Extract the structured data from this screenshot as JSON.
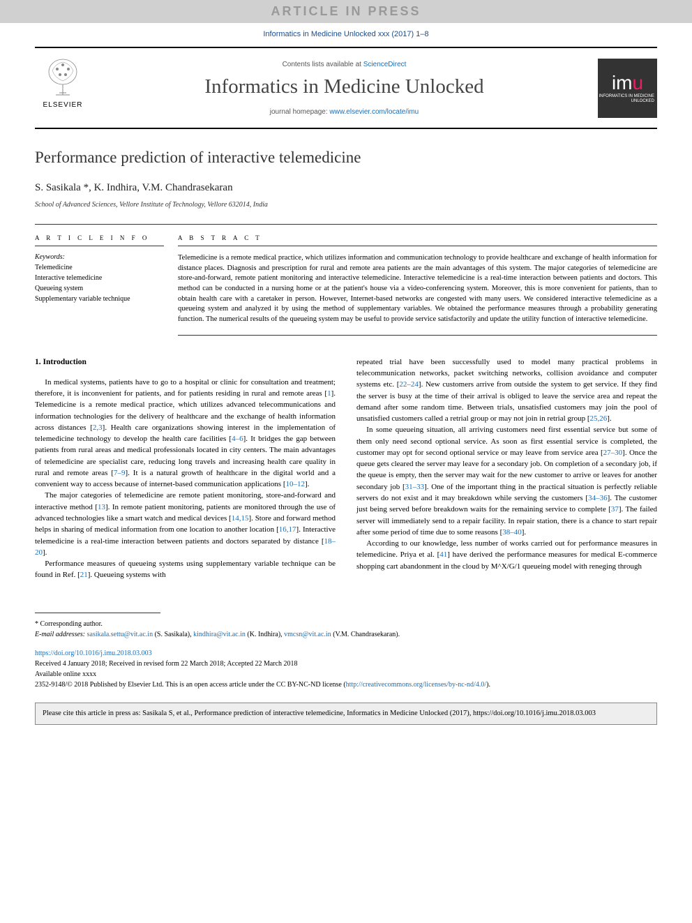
{
  "press_banner": "ARTICLE IN PRESS",
  "journal_ref": "Informatics in Medicine Unlocked xxx (2017) 1–8",
  "contents_text": "Contents lists available at ",
  "contents_link": "ScienceDirect",
  "journal_title": "Informatics in Medicine Unlocked",
  "homepage_label": "journal homepage: ",
  "homepage_url": "www.elsevier.com/locate/imu",
  "elsevier_label": "ELSEVIER",
  "imu_label_top": "imu",
  "imu_label_bottom": "INFORMATICS IN MEDICINE UNLOCKED",
  "article_title": "Performance prediction of interactive telemedicine",
  "authors": "S. Sasikala *, K. Indhira, V.M. Chandrasekaran",
  "affiliation": "School of Advanced Sciences, Vellore Institute of Technology, Vellore 632014, India",
  "article_info_head": "A R T I C L E  I N F O",
  "abstract_head": "A B S T R A C T",
  "keywords_label": "Keywords:",
  "keywords": [
    "Telemedicine",
    "Interactive telemedicine",
    "Queueing system",
    "Supplementary variable technique"
  ],
  "abstract": "Telemedicine is a remote medical practice, which utilizes information and communication technology to provide healthcare and exchange of health information for distance places. Diagnosis and prescription for rural and remote area patients are the main advantages of this system. The major categories of telemedicine are store-and-forward, remote patient monitoring and interactive telemedicine. Interactive telemedicine is a real-time interaction between patients and doctors. This method can be conducted in a nursing home or at the patient's house via a video-conferencing system. Moreover, this is more convenient for patients, than to obtain health care with a caretaker in person. However, Internet-based networks are congested with many users. We considered interactive telemedicine as a queueing system and analyzed it by using the method of supplementary variables. We obtained the performance measures through a probability generating function. The numerical results of the queueing system may be useful to provide service satisfactorily and update the utility function of interactive telemedicine.",
  "section1_head": "1.  Introduction",
  "p1": "In medical systems, patients have to go to a hospital or clinic for consultation and treatment; therefore, it is inconvenient for patients, and for patients residing in rural and remote areas [1]. Telemedicine is a remote medical practice, which utilizes advanced telecommunications and information technologies for the delivery of healthcare and the exchange of health information across distances [2,3]. Health care organizations showing interest in the implementation of telemedicine technology to develop the health care facilities [4–6]. It bridges the gap between patients from rural areas and medical professionals located in city centers. The main advantages of telemedicine are specialist care, reducing long travels and increasing health care quality in rural and remote areas [7–9]. It is a natural growth of healthcare in the digital world and a convenient way to access because of internet-based communication applications [10–12].",
  "p2": "The major categories of telemedicine are remote patient monitoring, store-and-forward and interactive method [13]. In remote patient monitoring, patients are monitored through the use of advanced technologies like a smart watch and medical devices [14,15]. Store and forward method helps in sharing of medical information from one location to another location [16,17]. Interactive telemedicine is a real-time interaction between patients and doctors separated by distance [18–20].",
  "p3": "Performance measures of queueing systems using supplementary variable technique can be found in Ref. [21]. Queueing systems with",
  "p4": "repeated trial have been successfully used to model many practical problems in telecommunication networks, packet switching networks, collision avoidance and computer systems etc. [22–24]. New customers arrive from outside the system to get service. If they find the server is busy at the time of their arrival is obliged to leave the service area and repeat the demand after some random time. Between trials, unsatisfied customers may join the pool of unsatisfied customers called a retrial group or may not join in retrial group [25,26].",
  "p5": "In some queueing situation, all arriving customers need first essential service but some of them only need second optional service. As soon as first essential service is completed, the customer may opt for second optional service or may leave from service area [27–30]. Once the queue gets cleared the server may leave for a secondary job. On completion of a secondary job, if the queue is empty, then the server may wait for the new customer to arrive or leaves for another secondary job [31–33]. One of the important thing in the practical situation is perfectly reliable servers do not exist and it may breakdown while serving the customers [34–36]. The customer just being served before breakdown waits for the remaining service to complete [37]. The failed server will immediately send to a repair facility. In repair station, there is a chance to start repair after some period of time due to some reasons [38–40].",
  "p6": "According to our knowledge, less number of works carried out for performance measures in telemedicine. Priya et al. [41] have derived the performance measures for medical E-commerce shopping cart abandonment in the cloud by M^X/G/1 queueing model with reneging through",
  "corresponding": "* Corresponding author.",
  "email_label": "E-mail addresses: ",
  "emails": [
    {
      "addr": "sasikala.settu@vit.ac.in",
      "name": "(S. Sasikala)"
    },
    {
      "addr": "kindhira@vit.ac.in",
      "name": "(K. Indhira)"
    },
    {
      "addr": "vmcsn@vit.ac.in",
      "name": "(V.M. Chandrasekaran)"
    }
  ],
  "doi": "https://doi.org/10.1016/j.imu.2018.03.003",
  "received": "Received 4 January 2018; Received in revised form 22 March 2018; Accepted 22 March 2018",
  "available": "Available online xxxx",
  "copyright": "2352-9148/© 2018 Published by Elsevier Ltd. This is an open access article under the CC BY-NC-ND license (",
  "license_url": "http://creativecommons.org/licenses/by-nc-nd/4.0/",
  "copyright_close": ").",
  "cite_box": "Please cite this article in press as: Sasikala S, et al., Performance prediction of interactive telemedicine, Informatics in Medicine Unlocked (2017), https://doi.org/10.1016/j.imu.2018.03.003",
  "colors": {
    "link": "#1a6db5",
    "banner_bg": "#d0d0d0",
    "banner_fg": "#999999",
    "journal_ref": "#1a4d8f"
  }
}
